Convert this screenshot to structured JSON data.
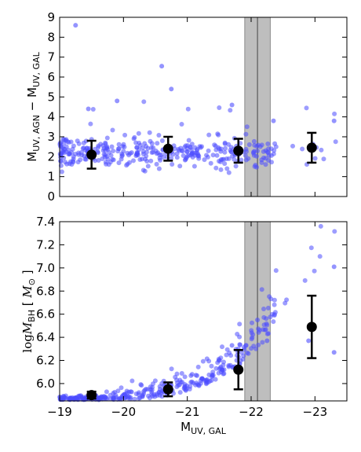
{
  "chart_data": [
    {
      "type": "scatter",
      "panel": "top",
      "ylabel": {
        "main": "M",
        "sub": "UV, AGN",
        "minus": " − ",
        "main2": "M",
        "sub2": "UV, GAL"
      },
      "xlim": [
        -19.0,
        -23.5
      ],
      "ylim": [
        0,
        9
      ],
      "yticks": [
        "0",
        "1",
        "2",
        "3",
        "4",
        "5",
        "6",
        "7",
        "8",
        "9"
      ],
      "ytick_values": [
        0,
        1,
        2,
        3,
        4,
        5,
        6,
        7,
        8,
        9
      ],
      "shaded_band": [
        -21.9,
        -22.3
      ],
      "vertical_line": -22.1,
      "binned": {
        "x": [
          -19.5,
          -20.7,
          -21.8,
          -22.95
        ],
        "y": [
          2.1,
          2.4,
          2.3,
          2.45
        ],
        "err": [
          0.7,
          0.6,
          0.6,
          0.75
        ]
      },
      "points_color": "#4c4cff",
      "grid": false
    },
    {
      "type": "scatter",
      "panel": "bottom",
      "ylabel": {
        "prefix": "log",
        "main": "M",
        "sub": "BH",
        "unit": "M",
        "unit_sub": "⊙"
      },
      "xlabel": {
        "main": "M",
        "sub": "UV, GAL"
      },
      "xlim": [
        -19.0,
        -23.5
      ],
      "ylim": [
        5.85,
        7.4
      ],
      "xticks": [
        "−19",
        "−20",
        "−21",
        "−22",
        "−23"
      ],
      "xtick_values": [
        -19,
        -20,
        -21,
        -22,
        -23
      ],
      "yticks": [
        "6.0",
        "6.2",
        "6.4",
        "6.6",
        "6.8",
        "7.0",
        "7.2",
        "7.4"
      ],
      "ytick_values": [
        6.0,
        6.2,
        6.4,
        6.6,
        6.8,
        7.0,
        7.2,
        7.4
      ],
      "shaded_band": [
        -21.9,
        -22.3
      ],
      "vertical_line": -22.1,
      "binned": {
        "x": [
          -19.5,
          -20.7,
          -21.8,
          -22.95
        ],
        "y": [
          5.9,
          5.95,
          6.12,
          6.49
        ],
        "err": [
          0.03,
          0.06,
          0.17,
          0.27
        ]
      },
      "points_color": "#4c4cff",
      "grid": false
    }
  ]
}
